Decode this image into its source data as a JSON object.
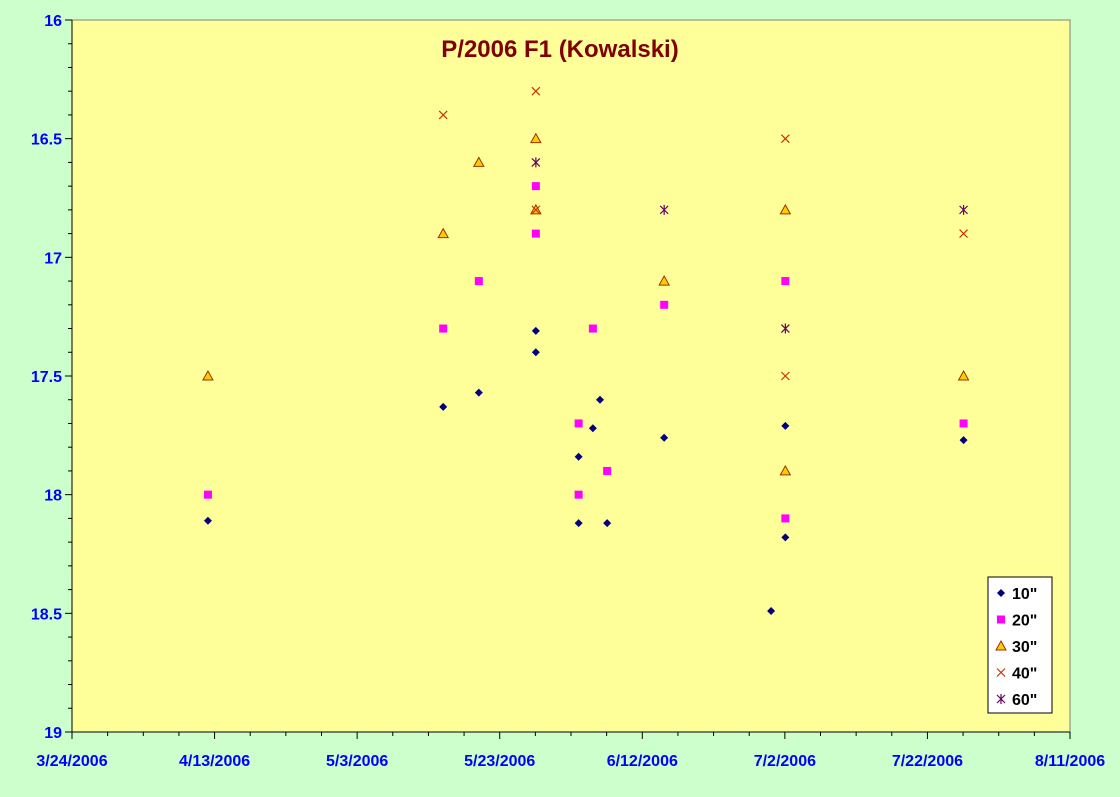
{
  "chart_data": {
    "type": "scatter",
    "title": "P/2006 F1 (Kowalski)",
    "xlabel": "",
    "ylabel": "",
    "x_type": "date",
    "xlim": [
      "2006-03-24",
      "2006-08-11"
    ],
    "x_ticks": [
      "3/24/2006",
      "4/13/2006",
      "5/3/2006",
      "5/23/2006",
      "6/12/2006",
      "7/2/2006",
      "7/22/2006",
      "8/11/2006"
    ],
    "ylim": [
      16,
      19
    ],
    "y_reversed": true,
    "y_ticks": [
      "16",
      "16.5",
      "17",
      "17.5",
      "18",
      "18.5",
      "19"
    ],
    "grid": false,
    "legend_position": "bottom-right",
    "series": [
      {
        "name": "10\"",
        "marker": "diamond",
        "color": "#000080",
        "points": [
          {
            "x": "2006-04-12",
            "y": 18.11
          },
          {
            "x": "2006-05-15",
            "y": 17.63
          },
          {
            "x": "2006-05-20",
            "y": 17.57
          },
          {
            "x": "2006-05-28",
            "y": 17.31
          },
          {
            "x": "2006-05-28",
            "y": 17.4
          },
          {
            "x": "2006-06-03",
            "y": 17.84
          },
          {
            "x": "2006-06-03",
            "y": 18.12
          },
          {
            "x": "2006-06-05",
            "y": 17.72
          },
          {
            "x": "2006-06-06",
            "y": 17.6
          },
          {
            "x": "2006-06-07",
            "y": 18.12
          },
          {
            "x": "2006-06-15",
            "y": 17.76
          },
          {
            "x": "2006-06-30",
            "y": 18.49
          },
          {
            "x": "2006-07-02",
            "y": 17.71
          },
          {
            "x": "2006-07-02",
            "y": 18.18
          },
          {
            "x": "2006-07-27",
            "y": 17.77
          }
        ]
      },
      {
        "name": "20\"",
        "marker": "square",
        "color": "#ff00ff",
        "points": [
          {
            "x": "2006-04-12",
            "y": 18.0
          },
          {
            "x": "2006-05-15",
            "y": 17.3
          },
          {
            "x": "2006-05-20",
            "y": 17.1
          },
          {
            "x": "2006-05-28",
            "y": 16.7
          },
          {
            "x": "2006-05-28",
            "y": 16.9
          },
          {
            "x": "2006-06-03",
            "y": 17.7
          },
          {
            "x": "2006-06-03",
            "y": 18.0
          },
          {
            "x": "2006-06-05",
            "y": 17.3
          },
          {
            "x": "2006-06-07",
            "y": 17.9
          },
          {
            "x": "2006-06-15",
            "y": 17.2
          },
          {
            "x": "2006-07-02",
            "y": 17.1
          },
          {
            "x": "2006-07-02",
            "y": 18.1
          },
          {
            "x": "2006-07-27",
            "y": 17.7
          }
        ]
      },
      {
        "name": "30\"",
        "marker": "triangle",
        "color": "#ffcc00",
        "stroke": "#993300",
        "points": [
          {
            "x": "2006-04-12",
            "y": 17.5
          },
          {
            "x": "2006-05-15",
            "y": 16.9
          },
          {
            "x": "2006-05-20",
            "y": 16.6
          },
          {
            "x": "2006-05-28",
            "y": 16.5
          },
          {
            "x": "2006-05-28",
            "y": 16.8
          },
          {
            "x": "2006-06-15",
            "y": 17.1
          },
          {
            "x": "2006-07-02",
            "y": 16.8
          },
          {
            "x": "2006-07-02",
            "y": 17.9
          },
          {
            "x": "2006-07-27",
            "y": 17.5
          }
        ]
      },
      {
        "name": "40\"",
        "marker": "x",
        "color": "#cc3300",
        "points": [
          {
            "x": "2006-05-15",
            "y": 16.4
          },
          {
            "x": "2006-05-28",
            "y": 16.3
          },
          {
            "x": "2006-05-28",
            "y": 16.8
          },
          {
            "x": "2006-07-02",
            "y": 16.5
          },
          {
            "x": "2006-07-02",
            "y": 17.5
          },
          {
            "x": "2006-07-27",
            "y": 16.9
          }
        ]
      },
      {
        "name": "60\"",
        "marker": "star",
        "color": "#660066",
        "points": [
          {
            "x": "2006-05-28",
            "y": 16.6
          },
          {
            "x": "2006-06-15",
            "y": 16.8
          },
          {
            "x": "2006-07-02",
            "y": 17.3
          },
          {
            "x": "2006-07-27",
            "y": 16.8
          }
        ]
      }
    ]
  },
  "colors": {
    "page_background": "#ccffcc",
    "plot_background": "#ffff99",
    "tick_label": "#0000ff",
    "title": "#800000"
  }
}
